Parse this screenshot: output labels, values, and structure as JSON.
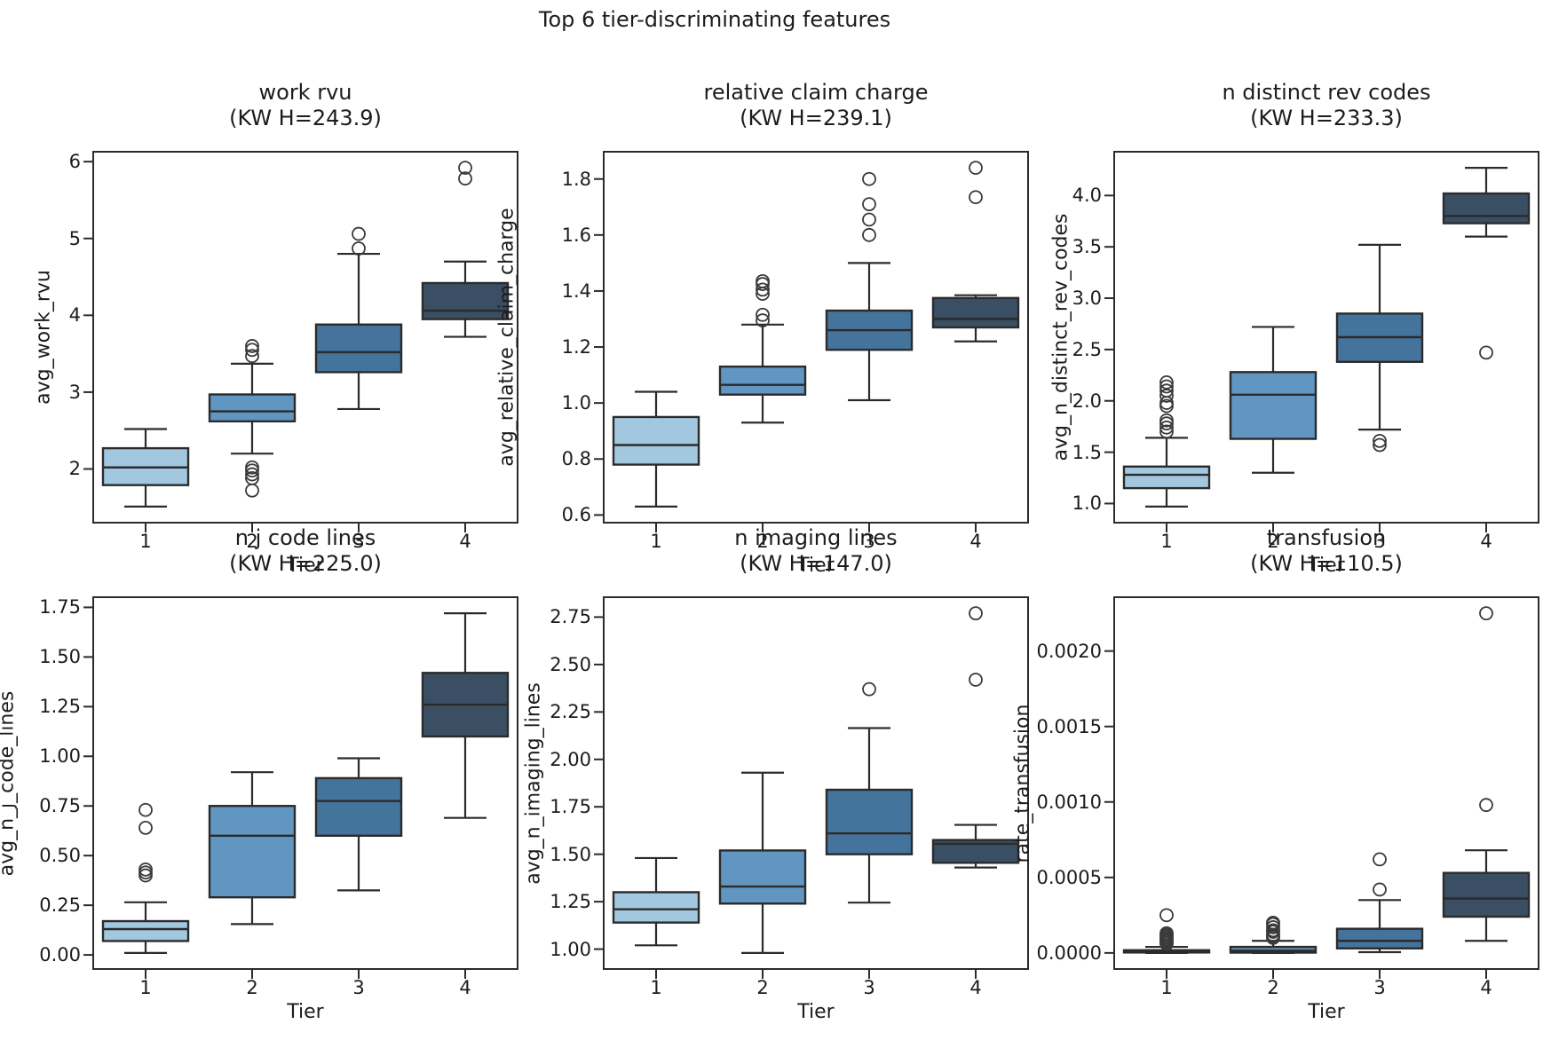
{
  "chart_data": {
    "type": "box",
    "suptitle": "Top 6 tier-discriminating features",
    "xlabel": "Tier",
    "categories": [
      "1",
      "2",
      "3",
      "4"
    ],
    "grid": false,
    "colors": {
      "tier_fills": [
        "#a2c8e0",
        "#6096c1",
        "#44739c",
        "#3a4f63"
      ],
      "edge": "#2b2b2b",
      "outlier_stroke": "#3a3a3a",
      "text": "#1c1c1c",
      "background": "#ffffff"
    },
    "subplots": [
      {
        "title": "work rvu",
        "subtitle": "(KW H=243.9)",
        "kw_h": 243.9,
        "ylabel": "avg_work_rvu",
        "ylim": [
          1.2895,
          6.1405
        ],
        "yticks": [
          {
            "value": 2,
            "label": "2"
          },
          {
            "value": 3,
            "label": "3"
          },
          {
            "value": 4,
            "label": "4"
          },
          {
            "value": 5,
            "label": "5"
          },
          {
            "value": 6,
            "label": "6"
          }
        ],
        "boxes": [
          {
            "tier": "1",
            "whislo": 1.51,
            "q1": 1.79,
            "med": 2.02,
            "q3": 2.27,
            "whishi": 2.52,
            "outliers": []
          },
          {
            "tier": "2",
            "whislo": 2.2,
            "q1": 2.62,
            "med": 2.75,
            "q3": 2.97,
            "whishi": 3.37,
            "outliers": [
              3.6,
              3.55,
              3.47,
              2.02,
              1.98,
              1.93,
              1.88,
              1.72
            ]
          },
          {
            "tier": "3",
            "whislo": 2.78,
            "q1": 3.26,
            "med": 3.52,
            "q3": 3.88,
            "whishi": 4.8,
            "outliers": [
              5.06,
              4.87
            ]
          },
          {
            "tier": "4",
            "whislo": 3.72,
            "q1": 3.95,
            "med": 4.06,
            "q3": 4.42,
            "whishi": 4.7,
            "outliers": [
              5.92,
              5.78
            ]
          }
        ]
      },
      {
        "title": "relative claim charge",
        "subtitle": "(KW H=239.1)",
        "kw_h": 239.1,
        "ylabel": "avg_relative_claim_charge",
        "ylim": [
          0.5695,
          1.9005
        ],
        "yticks": [
          {
            "value": 0.6,
            "label": "0.6"
          },
          {
            "value": 0.8,
            "label": "0.8"
          },
          {
            "value": 1.0,
            "label": "1.0"
          },
          {
            "value": 1.2,
            "label": "1.2"
          },
          {
            "value": 1.4,
            "label": "1.4"
          },
          {
            "value": 1.6,
            "label": "1.6"
          },
          {
            "value": 1.8,
            "label": "1.8"
          }
        ],
        "boxes": [
          {
            "tier": "1",
            "whislo": 0.63,
            "q1": 0.78,
            "med": 0.85,
            "q3": 0.95,
            "whishi": 1.04,
            "outliers": []
          },
          {
            "tier": "2",
            "whislo": 0.93,
            "q1": 1.03,
            "med": 1.065,
            "q3": 1.13,
            "whishi": 1.28,
            "outliers": [
              1.435,
              1.425,
              1.405,
              1.39,
              1.315,
              1.295
            ]
          },
          {
            "tier": "3",
            "whislo": 1.01,
            "q1": 1.19,
            "med": 1.26,
            "q3": 1.33,
            "whishi": 1.5,
            "outliers": [
              1.8,
              1.71,
              1.655,
              1.6
            ]
          },
          {
            "tier": "4",
            "whislo": 1.22,
            "q1": 1.27,
            "med": 1.3,
            "q3": 1.375,
            "whishi": 1.385,
            "outliers": [
              1.84,
              1.735
            ]
          }
        ]
      },
      {
        "title": "n distinct rev codes",
        "subtitle": "(KW H=233.3)",
        "kw_h": 233.3,
        "ylabel": "avg_n_distinct_rev_codes",
        "ylim": [
          0.805,
          4.435
        ],
        "yticks": [
          {
            "value": 1.0,
            "label": "1.0"
          },
          {
            "value": 1.5,
            "label": "1.5"
          },
          {
            "value": 2.0,
            "label": "2.0"
          },
          {
            "value": 2.5,
            "label": "2.5"
          },
          {
            "value": 3.0,
            "label": "3.0"
          },
          {
            "value": 3.5,
            "label": "3.5"
          },
          {
            "value": 4.0,
            "label": "4.0"
          }
        ],
        "boxes": [
          {
            "tier": "1",
            "whislo": 0.97,
            "q1": 1.15,
            "med": 1.28,
            "q3": 1.36,
            "whishi": 1.64,
            "outliers": [
              1.7,
              1.74,
              1.78,
              1.81,
              1.95,
              1.98,
              2.05,
              2.1,
              2.14,
              2.18
            ]
          },
          {
            "tier": "2",
            "whislo": 1.3,
            "q1": 1.63,
            "med": 2.06,
            "q3": 2.28,
            "whishi": 2.72,
            "outliers": []
          },
          {
            "tier": "3",
            "whislo": 1.72,
            "q1": 2.38,
            "med": 2.62,
            "q3": 2.85,
            "whishi": 3.52,
            "outliers": [
              1.61,
              1.57
            ]
          },
          {
            "tier": "4",
            "whislo": 3.6,
            "q1": 3.73,
            "med": 3.8,
            "q3": 4.02,
            "whishi": 4.27,
            "outliers": [
              2.47
            ]
          }
        ]
      },
      {
        "title": "n j code lines",
        "subtitle": "(KW H=225.0)",
        "kw_h": 225.0,
        "ylabel": "avg_n_j_code_lines",
        "ylim": [
          -0.0755,
          1.8055
        ],
        "yticks": [
          {
            "value": 0.0,
            "label": "0.00"
          },
          {
            "value": 0.25,
            "label": "0.25"
          },
          {
            "value": 0.5,
            "label": "0.50"
          },
          {
            "value": 0.75,
            "label": "0.75"
          },
          {
            "value": 1.0,
            "label": "1.00"
          },
          {
            "value": 1.25,
            "label": "1.25"
          },
          {
            "value": 1.5,
            "label": "1.50"
          },
          {
            "value": 1.75,
            "label": "1.75"
          }
        ],
        "boxes": [
          {
            "tier": "1",
            "whislo": 0.01,
            "q1": 0.07,
            "med": 0.13,
            "q3": 0.17,
            "whishi": 0.265,
            "outliers": [
              0.4,
              0.415,
              0.43,
              0.64,
              0.73
            ]
          },
          {
            "tier": "2",
            "whislo": 0.155,
            "q1": 0.29,
            "med": 0.6,
            "q3": 0.75,
            "whishi": 0.92,
            "outliers": []
          },
          {
            "tier": "3",
            "whislo": 0.325,
            "q1": 0.6,
            "med": 0.775,
            "q3": 0.89,
            "whishi": 0.99,
            "outliers": []
          },
          {
            "tier": "4",
            "whislo": 0.69,
            "q1": 1.1,
            "med": 1.26,
            "q3": 1.42,
            "whishi": 1.72,
            "outliers": []
          }
        ]
      },
      {
        "title": "n imaging lines",
        "subtitle": "(KW H=147.0)",
        "kw_h": 147.0,
        "ylabel": "avg_n_imaging_lines",
        "ylim": [
          0.8905,
          2.8595
        ],
        "yticks": [
          {
            "value": 1.0,
            "label": "1.00"
          },
          {
            "value": 1.25,
            "label": "1.25"
          },
          {
            "value": 1.5,
            "label": "1.50"
          },
          {
            "value": 1.75,
            "label": "1.75"
          },
          {
            "value": 2.0,
            "label": "2.00"
          },
          {
            "value": 2.25,
            "label": "2.25"
          },
          {
            "value": 2.5,
            "label": "2.50"
          },
          {
            "value": 2.75,
            "label": "2.75"
          }
        ],
        "boxes": [
          {
            "tier": "1",
            "whislo": 1.02,
            "q1": 1.14,
            "med": 1.21,
            "q3": 1.3,
            "whishi": 1.48,
            "outliers": []
          },
          {
            "tier": "2",
            "whislo": 0.98,
            "q1": 1.24,
            "med": 1.33,
            "q3": 1.52,
            "whishi": 1.93,
            "outliers": []
          },
          {
            "tier": "3",
            "whislo": 1.245,
            "q1": 1.5,
            "med": 1.61,
            "q3": 1.84,
            "whishi": 2.165,
            "outliers": [
              2.37
            ]
          },
          {
            "tier": "4",
            "whislo": 1.43,
            "q1": 1.455,
            "med": 1.555,
            "q3": 1.575,
            "whishi": 1.655,
            "outliers": [
              2.77,
              2.42
            ]
          }
        ]
      },
      {
        "title": "transfusion",
        "subtitle": "(KW H=110.5)",
        "kw_h": 110.5,
        "ylabel": "rate_transfusion",
        "ylim": [
          -0.0001125,
          0.0023625
        ],
        "yticks": [
          {
            "value": 0.0,
            "label": "0.0000"
          },
          {
            "value": 0.0005,
            "label": "0.0005"
          },
          {
            "value": 0.001,
            "label": "0.0010"
          },
          {
            "value": 0.0015,
            "label": "0.0015"
          },
          {
            "value": 0.002,
            "label": "0.0020"
          }
        ],
        "boxes": [
          {
            "tier": "1",
            "whislo": 0.0,
            "q1": 3e-06,
            "med": 1e-05,
            "q3": 1.8e-05,
            "whishi": 4e-05,
            "outliers": [
              6e-05,
              7e-05,
              8e-05,
              9e-05,
              0.0001,
              0.00011,
              0.00012,
              0.00013,
              0.00025
            ]
          },
          {
            "tier": "2",
            "whislo": 0.0,
            "q1": 2e-06,
            "med": 1.5e-05,
            "q3": 4e-05,
            "whishi": 8e-05,
            "outliers": [
              0.0001,
              0.00011,
              0.00012,
              0.00014,
              0.00015,
              0.00017,
              0.00019,
              0.0002
            ]
          },
          {
            "tier": "3",
            "whislo": 5e-06,
            "q1": 3e-05,
            "med": 8e-05,
            "q3": 0.00016,
            "whishi": 0.00035,
            "outliers": [
              0.00042,
              0.00062
            ]
          },
          {
            "tier": "4",
            "whislo": 8e-05,
            "q1": 0.00024,
            "med": 0.00036,
            "q3": 0.00053,
            "whishi": 0.00068,
            "outliers": [
              0.00098,
              0.00225
            ]
          }
        ]
      }
    ]
  }
}
